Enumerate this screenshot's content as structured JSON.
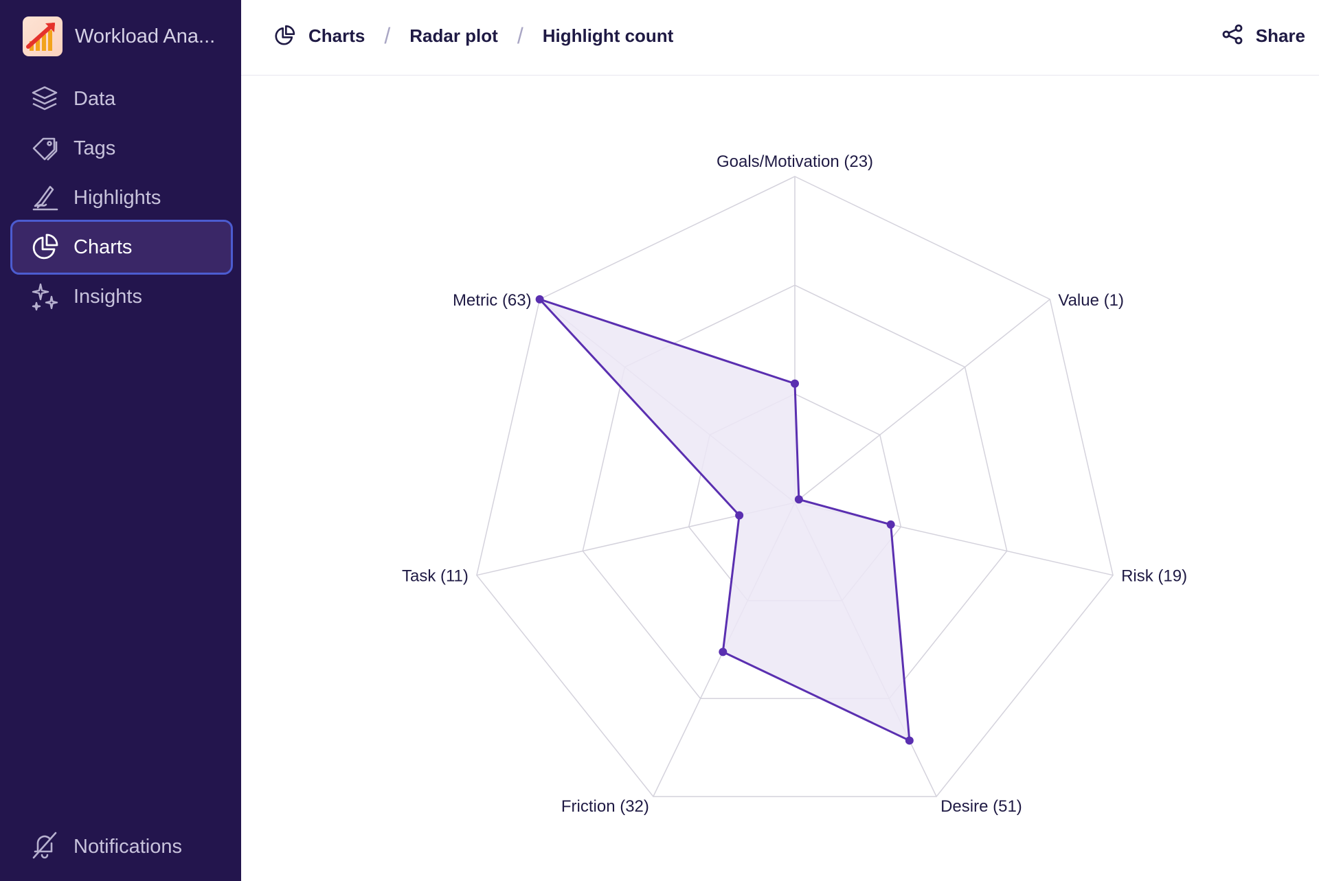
{
  "app": {
    "name": "Workload Ana..."
  },
  "sidebar": {
    "items": [
      {
        "label": "Data",
        "icon": "layers-icon"
      },
      {
        "label": "Tags",
        "icon": "tag-icon"
      },
      {
        "label": "Highlights",
        "icon": "highlighter-icon"
      },
      {
        "label": "Charts",
        "icon": "pie-chart-icon",
        "active": true
      },
      {
        "label": "Insights",
        "icon": "sparkles-icon"
      }
    ],
    "notifications_label": "Notifications"
  },
  "header": {
    "breadcrumb": [
      "Charts",
      "Radar plot",
      "Highlight count"
    ],
    "separator": "/",
    "share_label": "Share"
  },
  "colors": {
    "sidebar_bg": "#23154d",
    "active_item_bg": "#3a2767",
    "active_item_border": "#4c5cd0",
    "series_stroke": "#5a2fb0",
    "series_fill": "#ece8f6",
    "grid": "#d4d2dc"
  },
  "chart_data": {
    "type": "radar",
    "axes": [
      {
        "name": "Goals/Motivation",
        "value": 23,
        "label": "Goals/Motivation (23)"
      },
      {
        "name": "Value",
        "value": 1,
        "label": "Value (1)"
      },
      {
        "name": "Risk",
        "value": 19,
        "label": "Risk (19)"
      },
      {
        "name": "Desire",
        "value": 51,
        "label": "Desire (51)"
      },
      {
        "name": "Friction",
        "value": 32,
        "label": "Friction (32)"
      },
      {
        "name": "Task",
        "value": 11,
        "label": "Task (11)"
      },
      {
        "name": "Metric",
        "value": 63,
        "label": "Metric (63)"
      }
    ],
    "max": 63,
    "rings": 3,
    "grid": true
  }
}
